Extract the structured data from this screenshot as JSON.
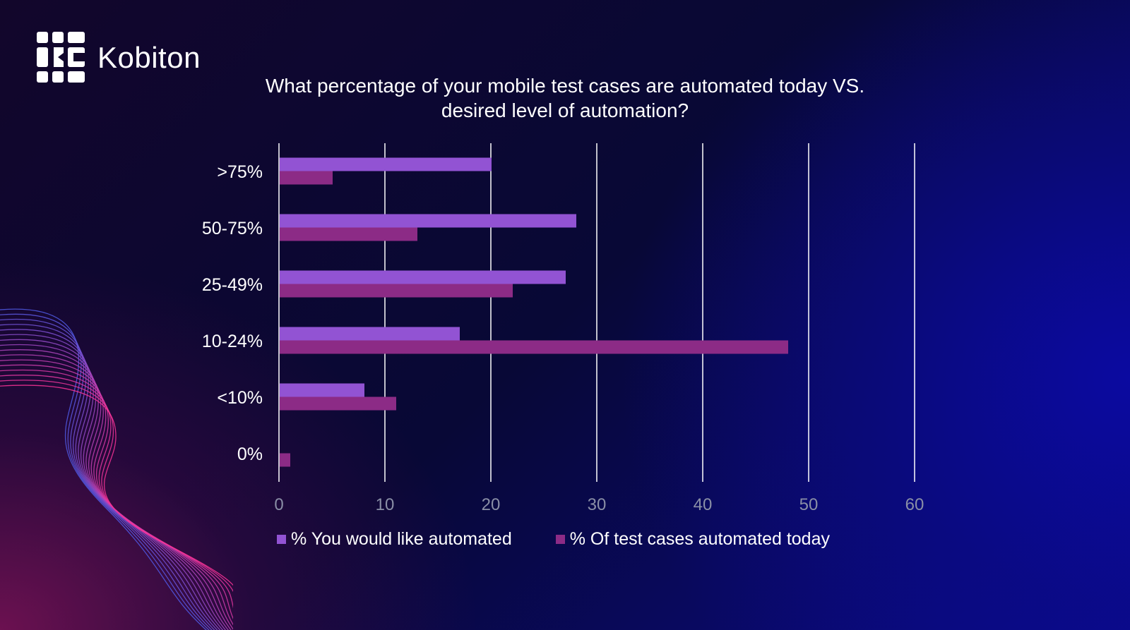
{
  "brand": {
    "name": "Kobiton",
    "logo_icon": "kobiton-logo-icon"
  },
  "colors": {
    "series_like": "#9253d3",
    "series_today": "#8c2b86",
    "grid": "#ffffff",
    "tick_label": "#8a8fa6"
  },
  "chart_data": {
    "type": "bar",
    "orientation": "horizontal",
    "title": "What percentage of your mobile test cases are automated today VS. desired level of automation?",
    "categories": [
      ">75%",
      "50-75%",
      "25-49%",
      "10-24%",
      "<10%",
      "0%"
    ],
    "series": [
      {
        "name": "% You would like automated",
        "values": [
          20,
          28,
          27,
          17,
          8,
          0
        ]
      },
      {
        "name": "% Of test cases automated today",
        "values": [
          5,
          13,
          22,
          48,
          11,
          1
        ]
      }
    ],
    "xlim": [
      0,
      60
    ],
    "xticks": [
      0,
      10,
      20,
      30,
      40,
      50,
      60
    ],
    "grid": true,
    "legend_position": "bottom"
  }
}
